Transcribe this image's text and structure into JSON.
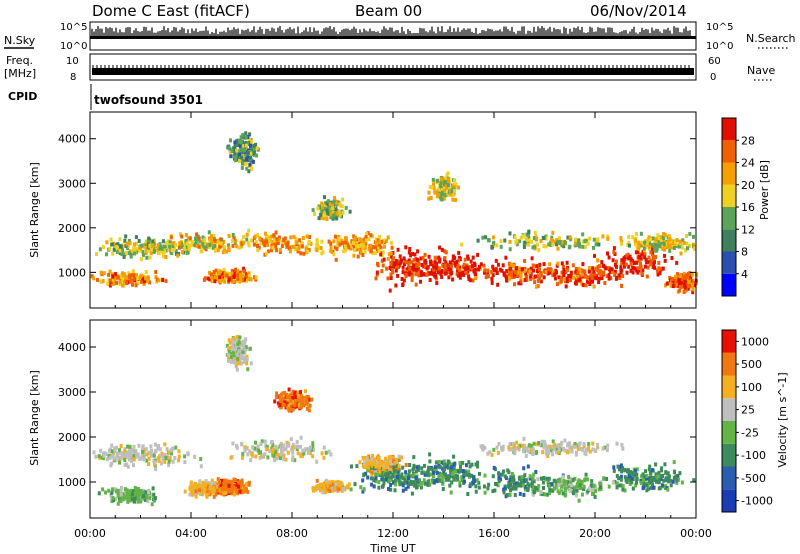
{
  "header": {
    "title": "Dome C East (fitACF)",
    "beam": "Beam 00",
    "date": "06/Nov/2014"
  },
  "status_panels": {
    "nsky_label": "N.Sky",
    "nsky_ticks": [
      "10^5",
      "10^0"
    ],
    "nsearch_label": "N.Search",
    "freq_label_1": "Freq.",
    "freq_label_2": "[MHz]",
    "freq_ticks": [
      "10",
      "8"
    ],
    "nave_label": "Nave",
    "nave_ticks": [
      "60",
      "0"
    ],
    "right_nsky_ticks": [
      "10^5",
      "10^0"
    ],
    "cpid_label": "CPID",
    "cpid_text": "twofsound 3501"
  },
  "colors": {
    "power_scale": [
      "#0000ff",
      "#2a4fb0",
      "#3e7f5e",
      "#5aa55a",
      "#f0d020",
      "#f5a000",
      "#f06000",
      "#e01000"
    ],
    "velocity_scale": [
      "#1a3cb4",
      "#2a5fb0",
      "#3d8a5a",
      "#62b445",
      "#bfbfbf",
      "#f5b020",
      "#f07810",
      "#e81000"
    ]
  },
  "chart_data": [
    {
      "type": "heatmap",
      "name": "power-panel",
      "ylabel": "Slant Range [km]",
      "ylim": [
        200,
        4600
      ],
      "yticks": [
        1000,
        2000,
        3000,
        4000
      ],
      "xlim": [
        0,
        24
      ],
      "colorbar_label": "Power [dB]",
      "colorbar_ticks": [
        "4",
        "8",
        "12",
        "16",
        "20",
        "24",
        "28"
      ],
      "colorbar_range": [
        0,
        32
      ]
    },
    {
      "type": "heatmap",
      "name": "velocity-panel",
      "ylabel": "Slant Range [km]",
      "ylim": [
        200,
        4600
      ],
      "yticks": [
        1000,
        2000,
        3000,
        4000
      ],
      "xlim": [
        0,
        24
      ],
      "xlabel": "Time UT",
      "xticks": [
        "00:00",
        "04:00",
        "08:00",
        "12:00",
        "16:00",
        "20:00",
        "00:00"
      ],
      "colorbar_label": "Velocity [m s^-1]",
      "colorbar_ticks": [
        "1000",
        "500",
        "100",
        "25",
        "-25",
        "-100",
        "-500",
        "-1000"
      ]
    }
  ]
}
